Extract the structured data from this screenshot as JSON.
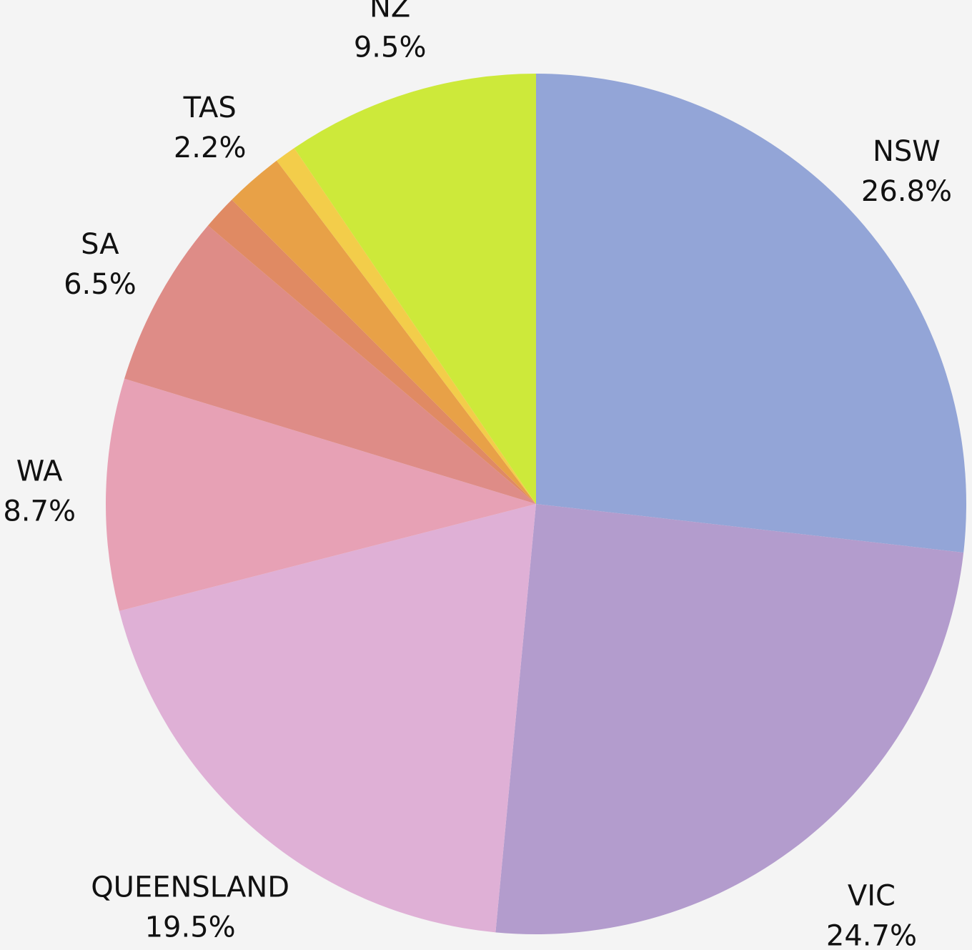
{
  "chart_data": {
    "type": "pie",
    "categories": [
      "NSW",
      "VIC",
      "QUEENSLAND",
      "WA",
      "SA",
      null,
      "TAS",
      null,
      "NZ"
    ],
    "values": [
      26.8,
      24.7,
      19.5,
      8.7,
      6.5,
      1.3,
      2.2,
      0.8,
      9.5
    ],
    "value_labels": [
      "26.8%",
      "24.7%",
      "19.5%",
      "8.7%",
      "6.5%",
      null,
      "2.2%",
      null,
      "9.5%"
    ],
    "colors": [
      "#93a5d7",
      "#b39ccd",
      "#dfb0d6",
      "#e7a1b5",
      "#de8c87",
      "#e08a63",
      "#e8a147",
      "#f3cd4a",
      "#cde93a"
    ]
  }
}
